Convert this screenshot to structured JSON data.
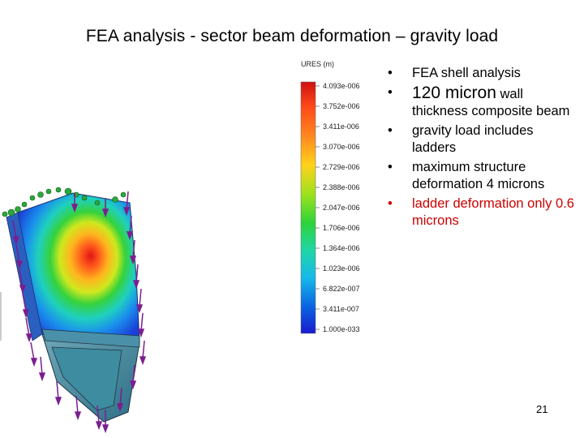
{
  "slide": {
    "title": "FEA analysis - sector beam deformation – gravity load",
    "page_number": "21"
  },
  "legend": {
    "title": "URES (m)",
    "ticks": [
      "4.093e-006",
      "3.752e-006",
      "3.411e-006",
      "3.070e-006",
      "2.729e-006",
      "2.388e-006",
      "2.047e-006",
      "1.706e-006",
      "1.364e-006",
      "1.023e-006",
      "6.822e-007",
      "3.411e-007",
      "1.000e-033"
    ],
    "colors": [
      "#d01010",
      "#ff4a1a",
      "#ff8a20",
      "#ffd21a",
      "#9ae21e",
      "#2ed23a",
      "#1fd6a8",
      "#16b8ea",
      "#0a5fe0",
      "#1a1ad0"
    ]
  },
  "bullets": [
    {
      "text": "FEA shell analysis",
      "color": "#000000"
    },
    {
      "lead": "120 micron",
      "rest": " wall thickness composite beam",
      "color": "#000000"
    },
    {
      "text": "gravity load includes ladders",
      "color": "#000000"
    },
    {
      "text": "maximum structure deformation 4 microns",
      "color": "#000000"
    },
    {
      "text": "ladder deformation only 0.6 microns",
      "color": "#cc0000"
    }
  ]
}
